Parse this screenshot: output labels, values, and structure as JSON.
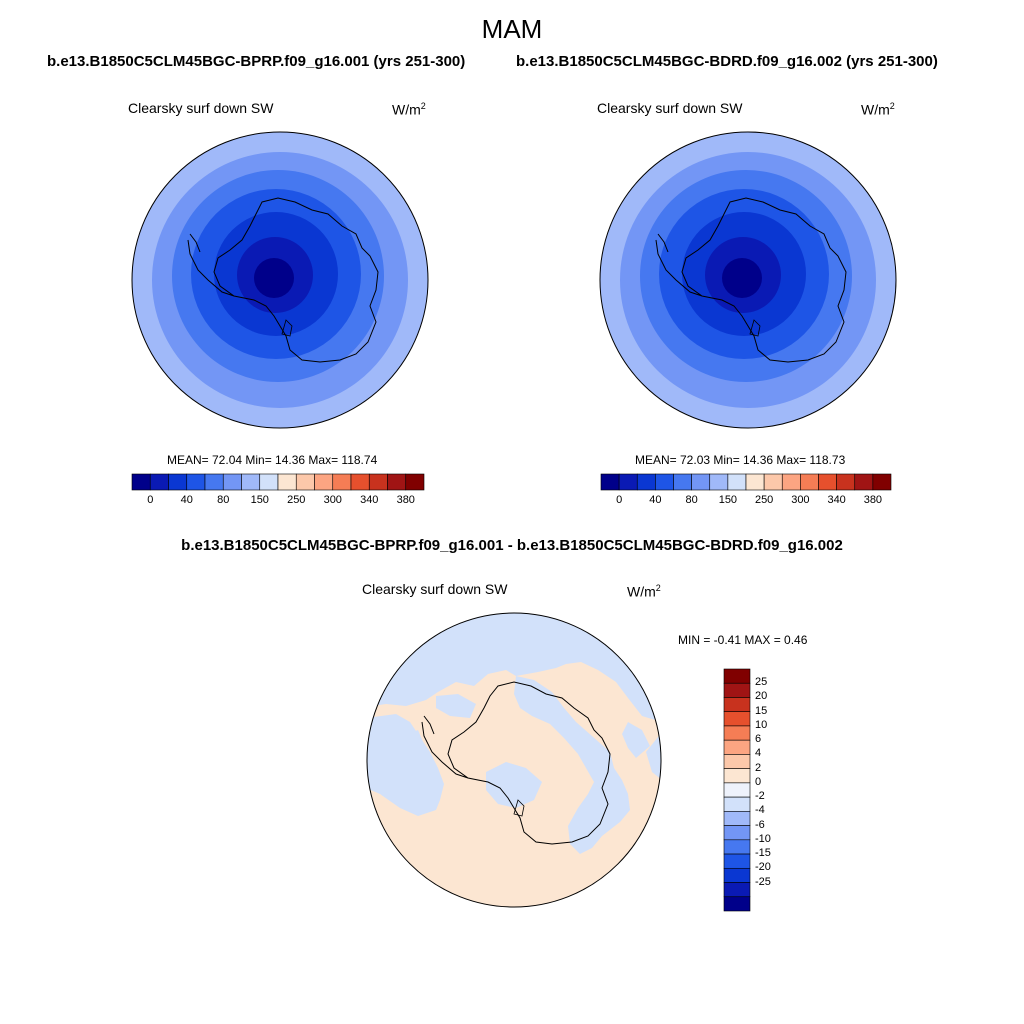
{
  "season": "MAM",
  "panels": [
    {
      "case": "b.e13.B1850C5CLM45BGC-BPRP.f09_g16.001 (yrs 251-300)",
      "variable": "Clearsky surf down SW",
      "units_base": "W/m",
      "units_exp": "2",
      "stats_text": "MEAN=  72.04  Min=  14.36  Max= 118.74",
      "stats": {
        "mean": 72.04,
        "min": 14.36,
        "max": 118.74
      }
    },
    {
      "case": "b.e13.B1850C5CLM45BGC-BDRD.f09_g16.002 (yrs 251-300)",
      "variable": "Clearsky surf down SW",
      "units_base": "W/m",
      "units_exp": "2",
      "stats_text": "MEAN=  72.03  Min=  14.36  Max= 118.73",
      "stats": {
        "mean": 72.03,
        "min": 14.36,
        "max": 118.73
      }
    }
  ],
  "difference": {
    "title": "b.e13.B1850C5CLM45BGC-BPRP.f09_g16.001 - b.e13.B1850C5CLM45BGC-BDRD.f09_g16.002",
    "variable": "Clearsky surf down SW",
    "units_base": "W/m",
    "units_exp": "2",
    "stats_text": "MIN =  -0.41 MAX =   0.46",
    "stats": {
      "min": -0.41,
      "max": 0.46
    }
  },
  "colorbar_main": {
    "labels": [
      "0",
      "40",
      "80",
      "150",
      "250",
      "300",
      "340",
      "380"
    ],
    "colors": [
      "#00008a",
      "#0a1ab4",
      "#0a37d2",
      "#1e55e6",
      "#4678f0",
      "#7396f5",
      "#a0b9f9",
      "#d2e1fa",
      "#fce6d2",
      "#fcc8aa",
      "#fca582",
      "#f57d55",
      "#e6502d",
      "#c8321e",
      "#a01414",
      "#800000"
    ]
  },
  "colorbar_diff": {
    "labels": [
      "25",
      "20",
      "15",
      "10",
      "6",
      "4",
      "2",
      "0",
      "-2",
      "-4",
      "-6",
      "-10",
      "-15",
      "-20",
      "-25"
    ],
    "colors": [
      "#800000",
      "#a01414",
      "#c8321e",
      "#e6502d",
      "#f57d55",
      "#fca582",
      "#fcc8aa",
      "#fce6d2",
      "#eef2fb",
      "#d2e1fa",
      "#a0b9f9",
      "#7396f5",
      "#4678f0",
      "#1e55e6",
      "#0a37d2",
      "#0a1ab4",
      "#00008a"
    ]
  },
  "chart_data": {
    "type": "heatmap",
    "projection": "south-polar-stereographic",
    "variable": "Clearsky surf down SW",
    "units": "W/m2",
    "season": "MAM",
    "panels": [
      {
        "case": "b.e13.B1850C5CLM45BGC-BPRP.f09_g16.001",
        "mean": 72.04,
        "min": 14.36,
        "max": 118.74
      },
      {
        "case": "b.e13.B1850C5CLM45BGC-BDRD.f09_g16.002",
        "mean": 72.03,
        "min": 14.36,
        "max": 118.73
      },
      {
        "case": "difference",
        "min": -0.41,
        "max": 0.46
      }
    ],
    "main_levels": [
      0,
      40,
      80,
      150,
      250,
      300,
      340,
      380
    ],
    "diff_levels": [
      -25,
      -20,
      -15,
      -10,
      -6,
      -4,
      -2,
      0,
      2,
      4,
      6,
      10,
      15,
      20,
      25
    ]
  }
}
